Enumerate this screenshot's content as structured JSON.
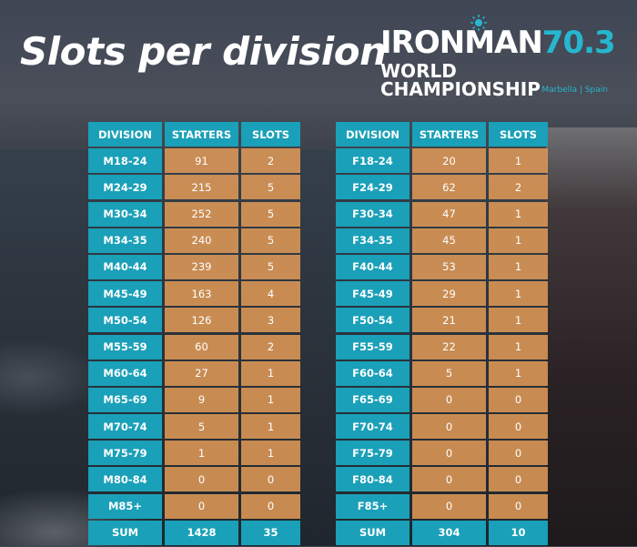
{
  "title": "Slots per division",
  "logo": {
    "brand_left": "IRONMAN",
    "brand_num": "70.3",
    "subtitle": "WORLD CHAMPIONSHIP",
    "location": "Marbella | Spain"
  },
  "headers": {
    "division": "DIVISION",
    "starters": "STARTERS",
    "slots": "SLOTS"
  },
  "men": [
    {
      "division": "M18-24",
      "starters": "91",
      "slots": "2"
    },
    {
      "division": "M24-29",
      "starters": "215",
      "slots": "5"
    },
    {
      "division": "M30-34",
      "starters": "252",
      "slots": "5"
    },
    {
      "division": "M34-35",
      "starters": "240",
      "slots": "5"
    },
    {
      "division": "M40-44",
      "starters": "239",
      "slots": "5"
    },
    {
      "division": "M45-49",
      "starters": "163",
      "slots": "4"
    },
    {
      "division": "M50-54",
      "starters": "126",
      "slots": "3"
    },
    {
      "division": "M55-59",
      "starters": "60",
      "slots": "2"
    },
    {
      "division": "M60-64",
      "starters": "27",
      "slots": "1"
    },
    {
      "division": "M65-69",
      "starters": "9",
      "slots": "1"
    },
    {
      "division": "M70-74",
      "starters": "5",
      "slots": "1"
    },
    {
      "division": "M75-79",
      "starters": "1",
      "slots": "1"
    },
    {
      "division": "M80-84",
      "starters": "0",
      "slots": "0"
    },
    {
      "division": "M85+",
      "starters": "0",
      "slots": "0"
    }
  ],
  "men_sum": {
    "label": "SUM",
    "starters": "1428",
    "slots": "35"
  },
  "women": [
    {
      "division": "F18-24",
      "starters": "20",
      "slots": "1"
    },
    {
      "division": "F24-29",
      "starters": "62",
      "slots": "2"
    },
    {
      "division": "F30-34",
      "starters": "47",
      "slots": "1"
    },
    {
      "division": "F34-35",
      "starters": "45",
      "slots": "1"
    },
    {
      "division": "F40-44",
      "starters": "53",
      "slots": "1"
    },
    {
      "division": "F45-49",
      "starters": "29",
      "slots": "1"
    },
    {
      "division": "F50-54",
      "starters": "21",
      "slots": "1"
    },
    {
      "division": "F55-59",
      "starters": "22",
      "slots": "1"
    },
    {
      "division": "F60-64",
      "starters": "5",
      "slots": "1"
    },
    {
      "division": "F65-69",
      "starters": "0",
      "slots": "0"
    },
    {
      "division": "F70-74",
      "starters": "0",
      "slots": "0"
    },
    {
      "division": "F75-79",
      "starters": "0",
      "slots": "0"
    },
    {
      "division": "F80-84",
      "starters": "0",
      "slots": "0"
    },
    {
      "division": "F85+",
      "starters": "0",
      "slots": "0"
    }
  ],
  "women_sum": {
    "label": "SUM",
    "starters": "304",
    "slots": "10"
  },
  "colors": {
    "header": "#1aa0b8",
    "value": "#de9857",
    "accent": "#26b7cf"
  }
}
